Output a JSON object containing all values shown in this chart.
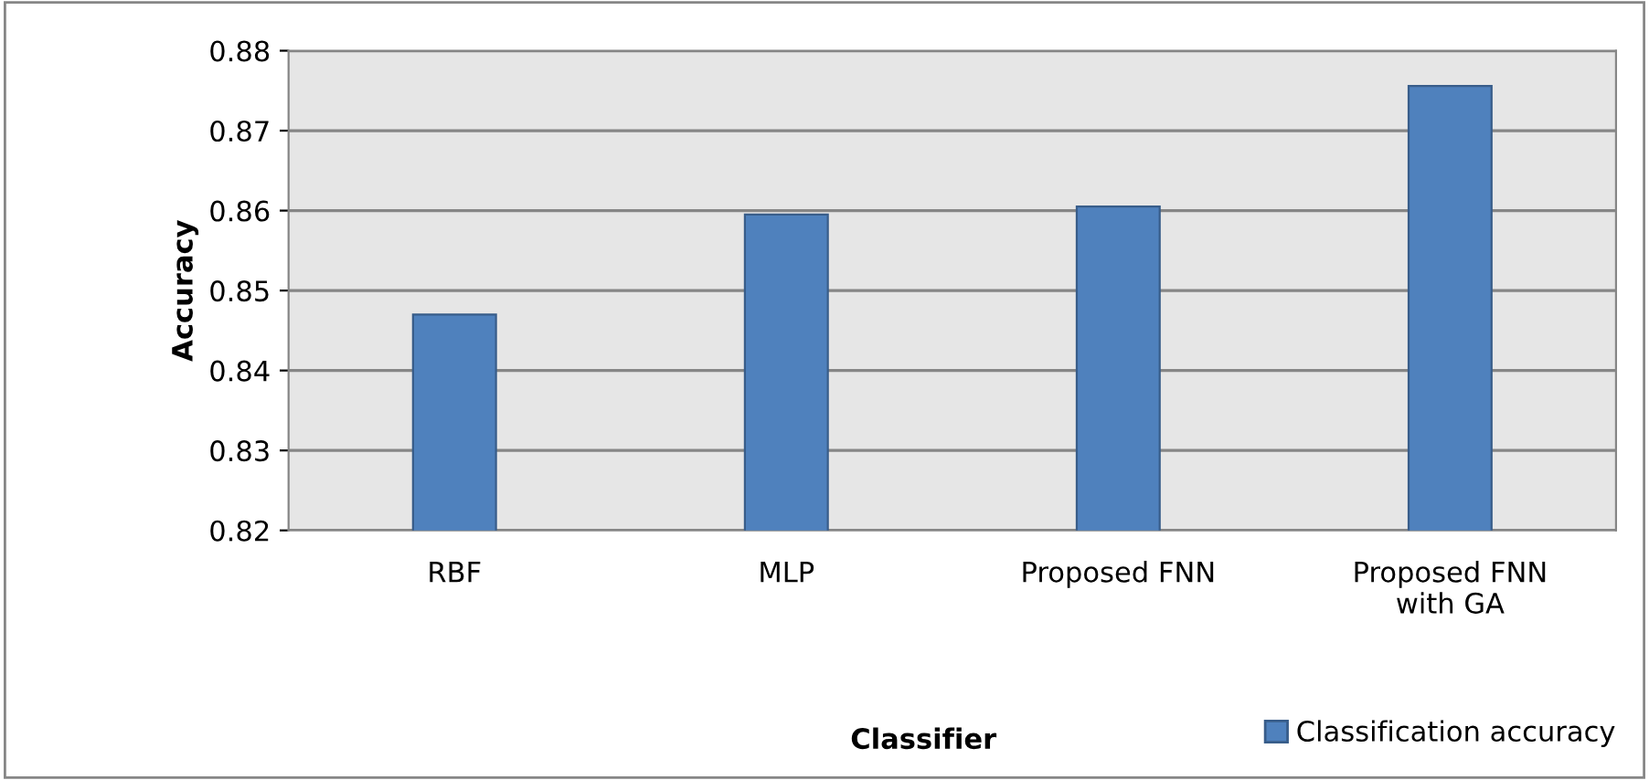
{
  "chart_data": {
    "type": "bar",
    "xlabel": "Classifier",
    "ylabel": "Accuracy",
    "categories": [
      "RBF",
      "MLP",
      "Proposed FNN",
      "Proposed FNN\nwith GA"
    ],
    "series": [
      {
        "name": "Classification accuracy",
        "color": "#4f81bd",
        "values": [
          0.847,
          0.8595,
          0.8605,
          0.8756
        ]
      }
    ],
    "ylim": [
      0.82,
      0.88
    ],
    "yticks": [
      0.82,
      0.83,
      0.84,
      0.85,
      0.86,
      0.87,
      0.88
    ],
    "grid": "y",
    "legend": "bottom right"
  }
}
